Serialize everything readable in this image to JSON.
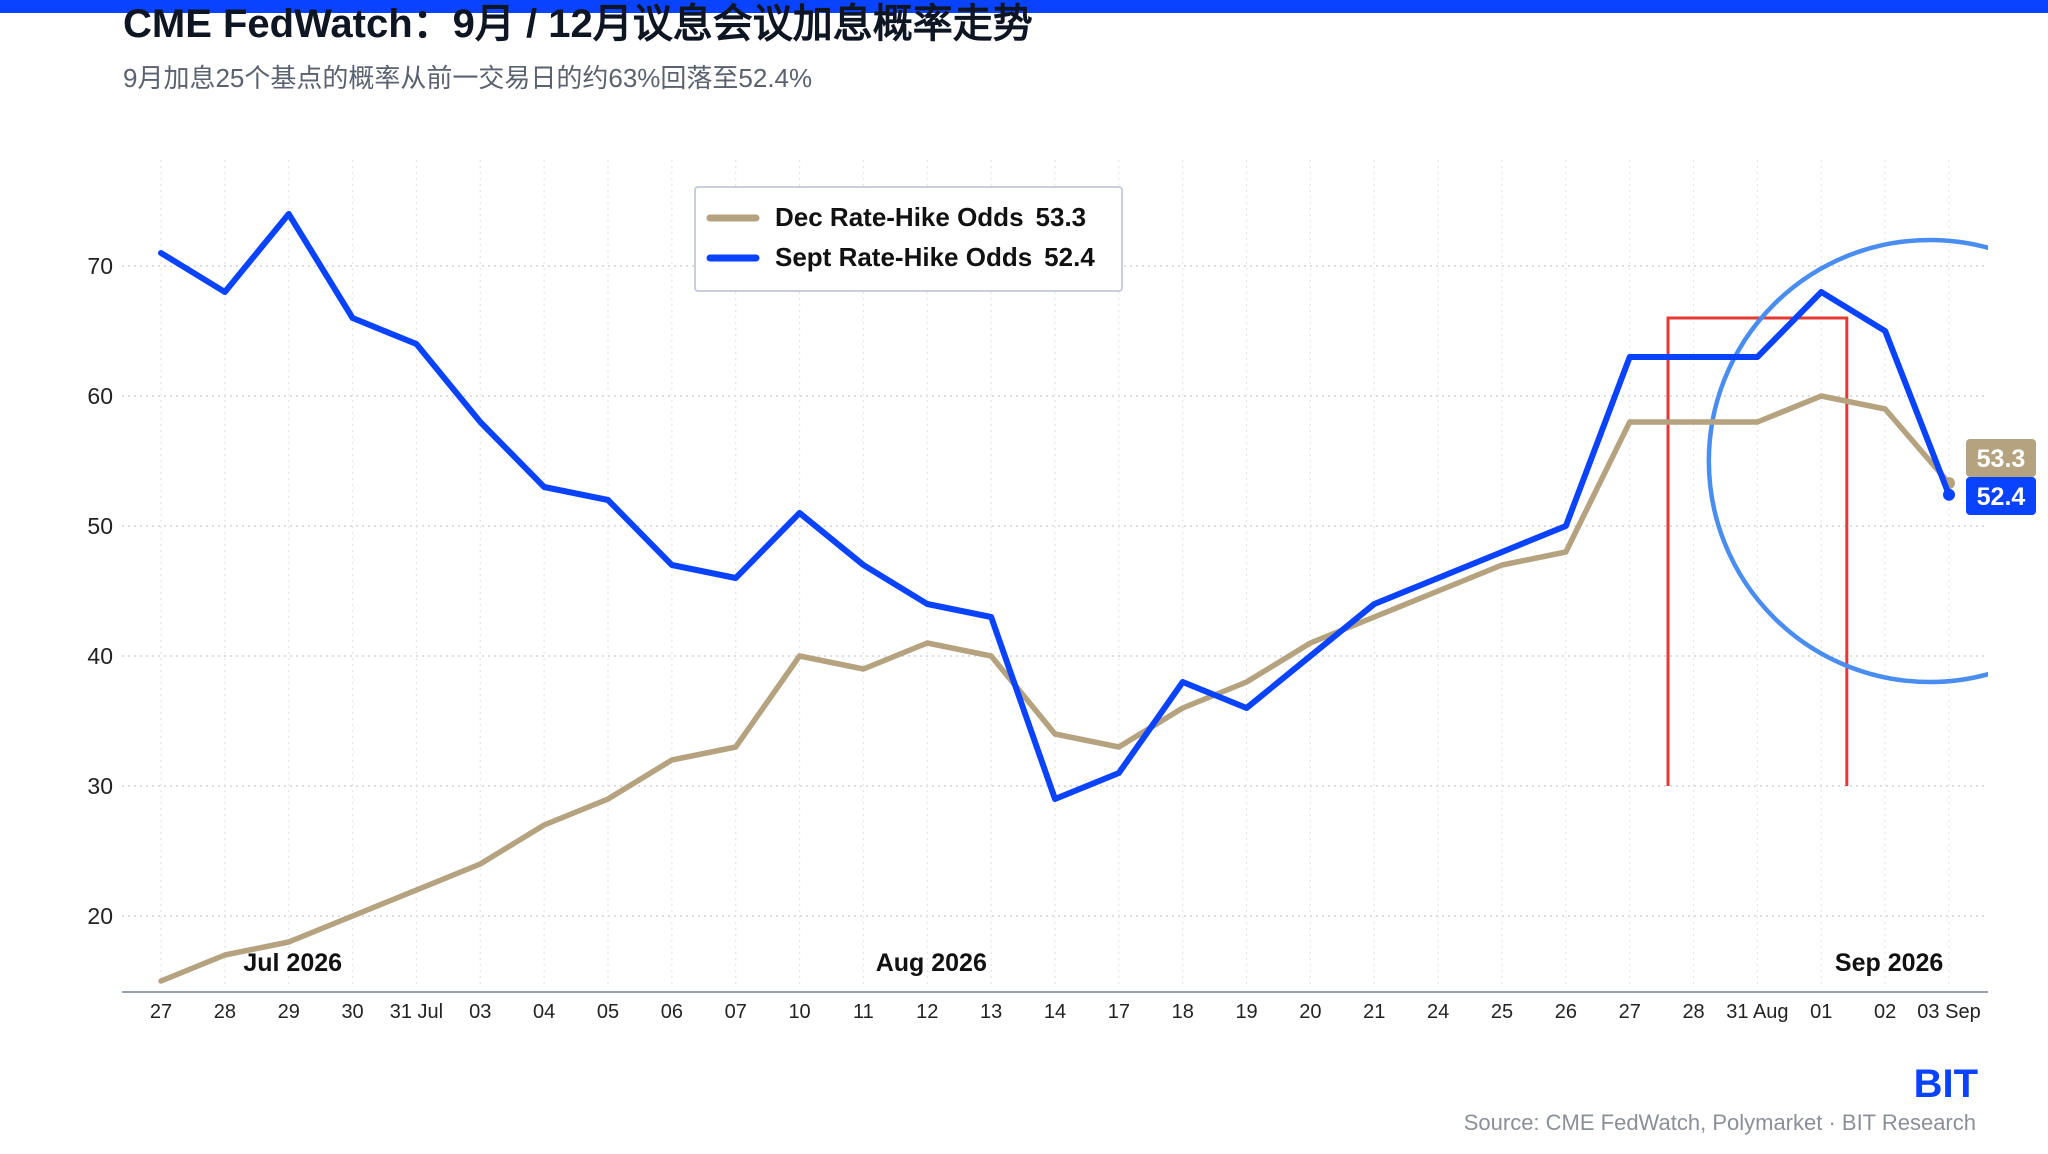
{
  "header": {
    "title": "CME FedWatch：9月 / 12月议息会议加息概率走势",
    "subtitle": "9月加息25个基点的概率从前一交易日的约63%回落至52.4%"
  },
  "footer": {
    "brand": "BIT",
    "source": "Source: CME FedWatch, Polymarket · BIT Research"
  },
  "colors": {
    "accent": "#0a43ff",
    "dec": "#b5a27f",
    "sept": "#0a43ff",
    "box": "#e53935",
    "circle": "#4a8df0"
  },
  "chart_data": {
    "type": "line",
    "title": "",
    "xlabel": "",
    "ylabel": "",
    "ylim": [
      14,
      76
    ],
    "yticks": [
      20,
      30,
      40,
      50,
      60,
      70
    ],
    "x": [
      "27",
      "28",
      "29",
      "30",
      "31 Jul",
      "03",
      "04",
      "05",
      "06",
      "07",
      "10",
      "11",
      "12",
      "13",
      "14",
      "17",
      "18",
      "19",
      "20",
      "21",
      "24",
      "25",
      "26",
      "27",
      "28",
      "31 Aug",
      "01",
      "02",
      "03 Sep"
    ],
    "month_labels": [
      {
        "label": "Jul 2026",
        "index": 2
      },
      {
        "label": "Aug 2026",
        "index": 12
      },
      {
        "label": "Sep 2026",
        "index": 27
      }
    ],
    "grid": true,
    "legend": "top-center",
    "series": [
      {
        "name": "Dec Rate-Hike Odds",
        "last": "53.3",
        "color": "#b5a27f",
        "values": [
          15,
          17,
          18,
          20,
          22,
          24,
          27,
          29,
          32,
          33,
          40,
          39,
          41,
          40,
          34,
          33,
          36,
          38,
          41,
          43,
          45,
          47,
          48,
          58,
          58,
          58,
          60,
          59,
          53.3
        ]
      },
      {
        "name": "Sept Rate-Hike Odds",
        "last": "52.4",
        "color": "#0a43ff",
        "values": [
          71,
          68,
          74,
          66,
          64,
          58,
          53,
          52,
          47,
          46,
          51,
          47,
          44,
          43,
          29,
          31,
          38,
          36,
          40,
          44,
          46,
          48,
          50,
          63,
          63,
          63,
          68,
          65,
          52.4
        ]
      }
    ],
    "annotations": [
      {
        "type": "rectangle",
        "x_from": 23.6,
        "x_to": 26.4,
        "y_top": 66,
        "y_bottom": 30
      },
      {
        "type": "circle",
        "center_x": 27.7,
        "center_y": 55,
        "radius_y": 17
      }
    ]
  }
}
